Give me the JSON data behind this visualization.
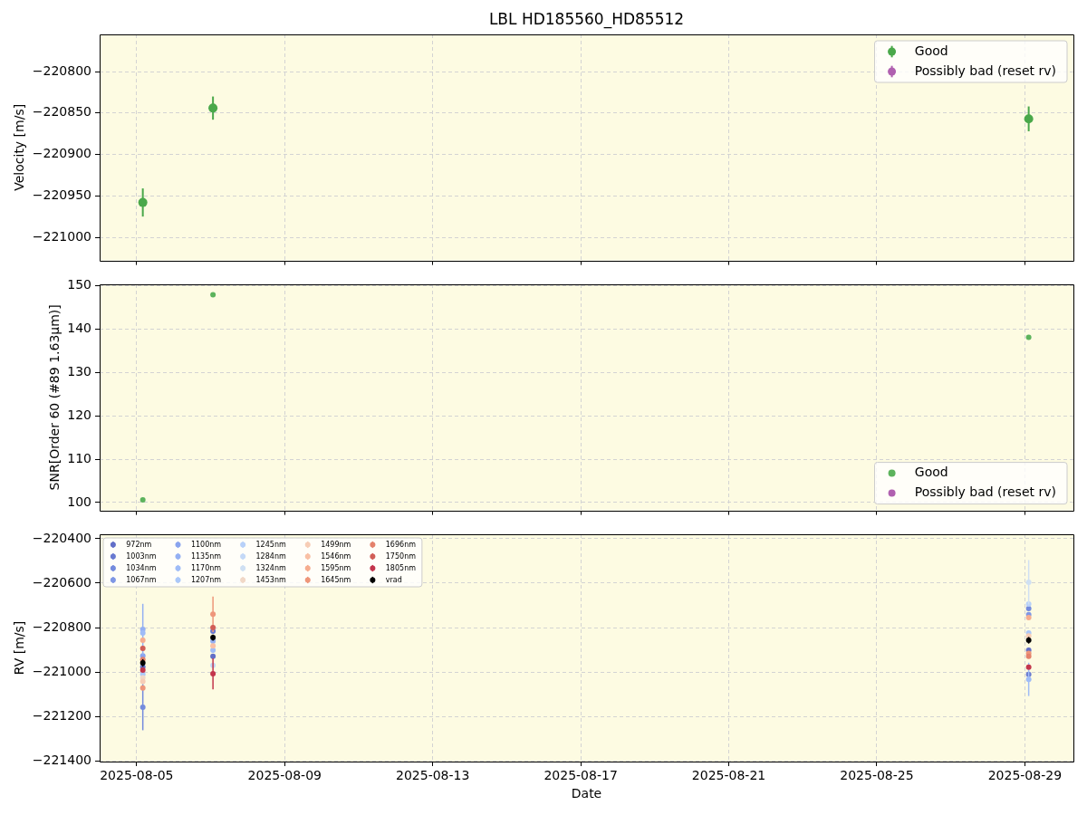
{
  "chart_data": [
    {
      "type": "scatter",
      "title": "LBL HD185560_HD85512",
      "ylabel": "Velocity [m/s]",
      "x": [
        "2025-08-05T04:00",
        "2025-08-07T01:30",
        "2025-08-29T02:30"
      ],
      "series": [
        {
          "name": "Good",
          "color": "#4aa84a",
          "values": [
            -220958,
            -220844,
            -220857
          ],
          "errors": [
            17,
            14,
            15
          ]
        },
        {
          "name": "Possibly bad (reset rv)",
          "color": "#b060b0",
          "values": [
            null,
            null,
            null
          ]
        }
      ],
      "xlim": [
        "2025-08-04T00:00",
        "2025-08-30T07:30"
      ],
      "xticks": [
        "2025-08-05",
        "2025-08-09",
        "2025-08-13",
        "2025-08-17",
        "2025-08-21",
        "2025-08-25",
        "2025-08-29"
      ],
      "ylim": [
        -221028,
        -220755
      ],
      "yticks": [
        -221000,
        -220950,
        -220900,
        -220850,
        -220800
      ],
      "grid": true,
      "legend": "top right",
      "marker": "circle",
      "tick_labels": "y"
    },
    {
      "type": "scatter",
      "ylabel": "SNR[Order 60 (#89 1.63μm)]",
      "x": [
        "2025-08-05T04:00",
        "2025-08-07T01:30",
        "2025-08-29T02:30"
      ],
      "series": [
        {
          "name": "Good",
          "color": "#5cb35c",
          "values": [
            100.6,
            147.9,
            138.1
          ]
        },
        {
          "name": "Possibly bad (reset rv)",
          "color": "#b060b0",
          "values": [
            null,
            null,
            null
          ]
        }
      ],
      "xlim": [
        "2025-08-04T00:00",
        "2025-08-30T07:30"
      ],
      "xticks": [
        "2025-08-05",
        "2025-08-09",
        "2025-08-13",
        "2025-08-17",
        "2025-08-21",
        "2025-08-25",
        "2025-08-29"
      ],
      "ylim": [
        98.2,
        150.3
      ],
      "yticks": [
        100,
        110,
        120,
        130,
        140,
        150
      ],
      "grid": true,
      "legend": "bottom right",
      "marker": "circle",
      "tick_labels": "y"
    },
    {
      "type": "scatter",
      "xlabel": "Date",
      "ylabel": "RV [m/s]",
      "x": [
        "2025-08-05T04:00",
        "2025-08-07T01:30",
        "2025-08-29T02:30"
      ],
      "series": [
        {
          "name": "972nm",
          "color": "#626fc7",
          "values": [
            -220977,
            -220929,
            -220902
          ]
        },
        {
          "name": "1003nm",
          "color": "#697ad0",
          "values": [
            null,
            -220816,
            -221011
          ]
        },
        {
          "name": "1034nm",
          "color": "#748bdd",
          "values": [
            -221158,
            null,
            -220714
          ],
          "errors": [
            104,
            null,
            null
          ]
        },
        {
          "name": "1067nm",
          "color": "#7f97e5",
          "values": [
            null,
            null,
            -220742
          ]
        },
        {
          "name": "1100nm",
          "color": "#89a4ee",
          "values": [
            -220927,
            null,
            null
          ]
        },
        {
          "name": "1135nm",
          "color": "#94b0f3",
          "values": [
            -220808,
            -220861,
            null
          ],
          "errors": [
            115,
            null,
            null
          ]
        },
        {
          "name": "1170nm",
          "color": "#9fbcf7",
          "values": [
            -220824,
            -220902,
            -221033
          ],
          "errors": [
            null,
            null,
            75
          ]
        },
        {
          "name": "1207nm",
          "color": "#abc8f9",
          "values": [
            -221011,
            null,
            -220824
          ]
        },
        {
          "name": "1245nm",
          "color": "#b8d1f9",
          "values": [
            null,
            null,
            -220694
          ]
        },
        {
          "name": "1284nm",
          "color": "#c4d9f7",
          "values": [
            null,
            -220970,
            null
          ]
        },
        {
          "name": "1324nm",
          "color": "#cfe0f3",
          "values": [
            null,
            null,
            -220596
          ],
          "errors": [
            null,
            null,
            100
          ]
        },
        {
          "name": "1453nm",
          "color": "#f1d8c7",
          "values": [
            -221026,
            null,
            null
          ]
        },
        {
          "name": "1499nm",
          "color": "#f7cdb6",
          "values": [
            -221042,
            null,
            -220837
          ]
        },
        {
          "name": "1546nm",
          "color": "#f9c0a5",
          "values": [
            null,
            -220882,
            null
          ]
        },
        {
          "name": "1595nm",
          "color": "#f6ad8f",
          "values": [
            -220857,
            null,
            -220755
          ]
        },
        {
          "name": "1645nm",
          "color": "#ee967a",
          "values": [
            -221072,
            -220740,
            -220916
          ],
          "errors": [
            null,
            80,
            null
          ]
        },
        {
          "name": "1696nm",
          "color": "#e4816b",
          "values": [
            -220943,
            null,
            -220929
          ]
        },
        {
          "name": "1750nm",
          "color": "#d15e57",
          "values": [
            -220894,
            -220800,
            null
          ]
        },
        {
          "name": "1805nm",
          "color": "#c3354b",
          "values": [
            -220991,
            -221008,
            -220978
          ],
          "errors": [
            null,
            70,
            null
          ]
        },
        {
          "name": "vrad",
          "color": "#000000",
          "values": [
            -220959,
            -220845,
            -220857
          ],
          "errors": [
            17,
            14,
            15
          ]
        }
      ],
      "xlim": [
        "2025-08-04T00:00",
        "2025-08-30T07:30"
      ],
      "xticks": [
        "2025-08-05",
        "2025-08-09",
        "2025-08-13",
        "2025-08-17",
        "2025-08-21",
        "2025-08-25",
        "2025-08-29"
      ],
      "ylim": [
        -221403,
        -220380
      ],
      "yticks": [
        -221400,
        -221200,
        -221000,
        -220800,
        -220600,
        -220400
      ],
      "grid": true,
      "legend": "top left",
      "marker": "circle"
    }
  ]
}
